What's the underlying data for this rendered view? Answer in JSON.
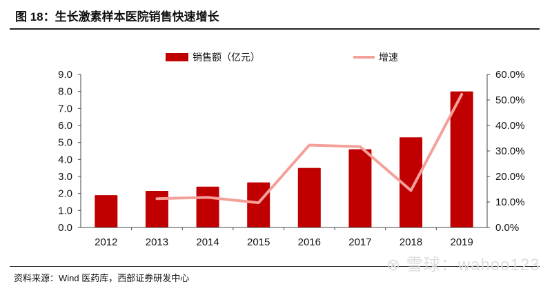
{
  "title": "图 18：生长激素样本医院销售快速增长",
  "source": "资料来源：Wind 医药库，西部证券研发中心",
  "watermark": "雪球：wahoo123",
  "chart_data": {
    "type": "bar+line",
    "categories": [
      "2012",
      "2013",
      "2014",
      "2015",
      "2016",
      "2017",
      "2018",
      "2019"
    ],
    "series": [
      {
        "name": "销售额（亿元）",
        "type": "bar",
        "axis": "left",
        "color": "#c00000",
        "values": [
          1.9,
          2.15,
          2.4,
          2.65,
          3.5,
          4.6,
          5.3,
          8.0
        ]
      },
      {
        "name": "增速",
        "type": "line",
        "axis": "right",
        "color": "#f4a09a",
        "values": [
          null,
          11.3,
          11.8,
          9.7,
          32.3,
          31.7,
          14.5,
          52.2
        ]
      }
    ],
    "left_axis": {
      "ylim": [
        0,
        9
      ],
      "ticks": [
        "0.0",
        "1.0",
        "2.0",
        "3.0",
        "4.0",
        "5.0",
        "6.0",
        "7.0",
        "8.0",
        "9.0"
      ]
    },
    "right_axis": {
      "ylim": [
        0,
        60
      ],
      "ticks": [
        "0.0%",
        "10.0%",
        "20.0%",
        "30.0%",
        "40.0%",
        "50.0%",
        "60.0%"
      ]
    },
    "legend_position": "top",
    "grid": false
  }
}
